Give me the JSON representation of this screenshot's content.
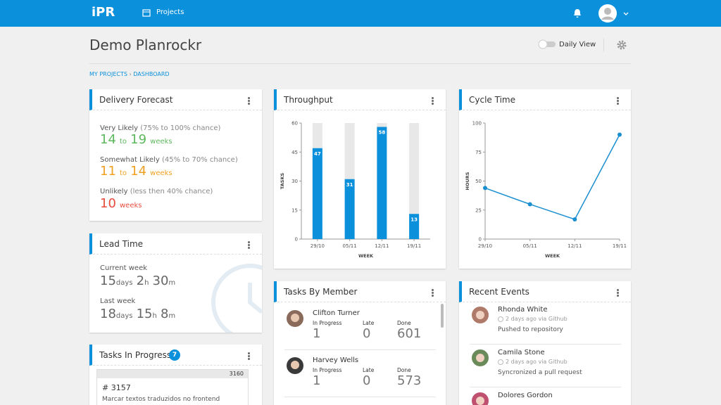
{
  "header": {
    "logo": "iPR",
    "nav": "Projects"
  },
  "page": {
    "title": "Demo Planrockr",
    "toggle": "Daily View",
    "breadcrumb": [
      "MY PROJECTS",
      "DASHBOARD"
    ]
  },
  "delivery_forecast": {
    "title": "Delivery Forecast",
    "items": [
      {
        "label": "Very Likely",
        "note": "(75% to 100% chance)",
        "from": 14,
        "to_word": "to",
        "to": 19,
        "unit": "weeks"
      },
      {
        "label": "Somewhat Likely",
        "note": "(45% to 70% chance)",
        "from": 11,
        "to_word": "to",
        "to": 14,
        "unit": "weeks"
      },
      {
        "label": "Unlikely",
        "note": "(less then 40% chance)",
        "from": 10,
        "unit": "weeks"
      }
    ]
  },
  "lead_time": {
    "title": "Lead Time",
    "periods": [
      {
        "label": "Current week",
        "days": 15,
        "days_unit": "days",
        "hours": 2,
        "hours_unit": "h",
        "minutes": 30,
        "minutes_unit": "m"
      },
      {
        "label": "Last week",
        "days": 18,
        "days_unit": "days",
        "hours": 15,
        "hours_unit": "h",
        "minutes": 8,
        "minutes_unit": "m"
      }
    ]
  },
  "tasks_in_progress": {
    "title": "Tasks In Progress",
    "count": 7,
    "tasks": [
      {
        "ref": "3160",
        "id": "# 3157",
        "text": "Marcar textos traduzidos no frontend"
      }
    ]
  },
  "tasks_by_member": {
    "title": "Tasks By Member",
    "columns": [
      "In Progress",
      "Late",
      "Done"
    ],
    "members": [
      {
        "name": "Clifton Turner",
        "counts": [
          1,
          0,
          601
        ]
      },
      {
        "name": "Harvey Wells",
        "counts": [
          1,
          0,
          573
        ]
      }
    ]
  },
  "recent_events": {
    "title": "Recent Events",
    "events": [
      {
        "name": "Rhonda White",
        "time": "2 days ago via",
        "source": "Github",
        "action": "Pushed to repository"
      },
      {
        "name": "Camila Stone",
        "time": "2 days ago via",
        "source": "Github",
        "action": "Syncronized a pull request"
      },
      {
        "name": "Dolores Gordon"
      }
    ]
  },
  "chart_data": [
    {
      "type": "bar",
      "title": "Throughput",
      "ylabel": "TASKS",
      "xlabel": "WEEK",
      "categories": [
        "29/10",
        "05/11",
        "12/11",
        "19/11"
      ],
      "values": [
        47,
        31,
        58,
        13
      ],
      "color": "#0b90db",
      "ylim": [
        0,
        60
      ],
      "yticks": [
        0,
        15,
        30,
        45,
        60
      ]
    },
    {
      "type": "line",
      "title": "Cycle Time",
      "ylabel": "HOURS",
      "xlabel": "WEEK",
      "categories": [
        "29/10",
        "05/11",
        "12/11",
        "19/11"
      ],
      "values": [
        44,
        30,
        17,
        90
      ],
      "color": "#1a8fd0",
      "ylim": [
        0,
        100
      ],
      "yticks": [
        0,
        25,
        50,
        75,
        100
      ]
    }
  ]
}
